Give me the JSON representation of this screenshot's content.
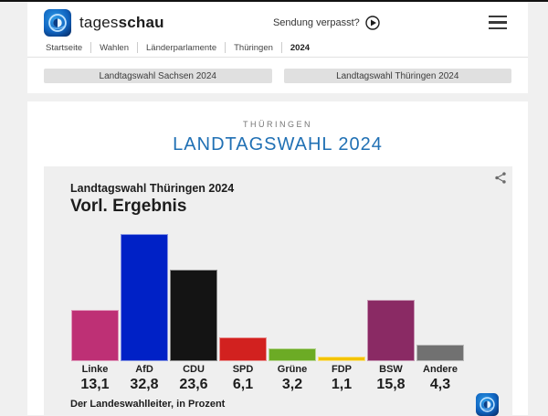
{
  "header": {
    "brand": {
      "regular": "tages",
      "bold": "schau"
    },
    "sendung_verpasst_label": "Sendung verpasst?",
    "breadcrumb": [
      "Startseite",
      "Wahlen",
      "Länderparlamente",
      "Thüringen",
      "2024"
    ]
  },
  "nav_buttons": [
    {
      "label": "Landtagswahl Sachsen 2024"
    },
    {
      "label": "Landtagswahl Thüringen 2024"
    }
  ],
  "page": {
    "eyebrow": "THÜRINGEN",
    "title": "LANDTAGSWAHL 2024",
    "title_color": "#2070b4"
  },
  "chart_card": {
    "subtitle": "Landtagswahl Thüringen 2024",
    "title": "Vorl. Ergebnis",
    "source": "Der Landeswahlleiter, in Prozent"
  },
  "icons": {
    "brand_logo": "globe-logo",
    "play": "play-icon",
    "menu": "menu-icon",
    "share": "share-icon"
  },
  "chart_data": {
    "type": "bar",
    "title": "Vorl. Ergebnis",
    "subtitle": "Landtagswahl Thüringen 2024",
    "categories": [
      "Linke",
      "AfD",
      "CDU",
      "SPD",
      "Grüne",
      "FDP",
      "BSW",
      "Andere"
    ],
    "values": [
      13.1,
      32.8,
      23.6,
      6.1,
      3.2,
      1.1,
      15.8,
      4.3
    ],
    "value_labels": [
      "13,1",
      "32,8",
      "23,6",
      "6,1",
      "3,2",
      "1,1",
      "15,8",
      "4,3"
    ],
    "colors": [
      "#be3075",
      "#0021c6",
      "#141414",
      "#d2211f",
      "#6cab25",
      "#f3c300",
      "#8a2a64",
      "#717171"
    ],
    "unit": "Prozent",
    "ylim": [
      0,
      35
    ],
    "grid": false,
    "legend": "none",
    "value_label_position": "below-bars",
    "source": "Der Landeswahlleiter, in Prozent"
  }
}
